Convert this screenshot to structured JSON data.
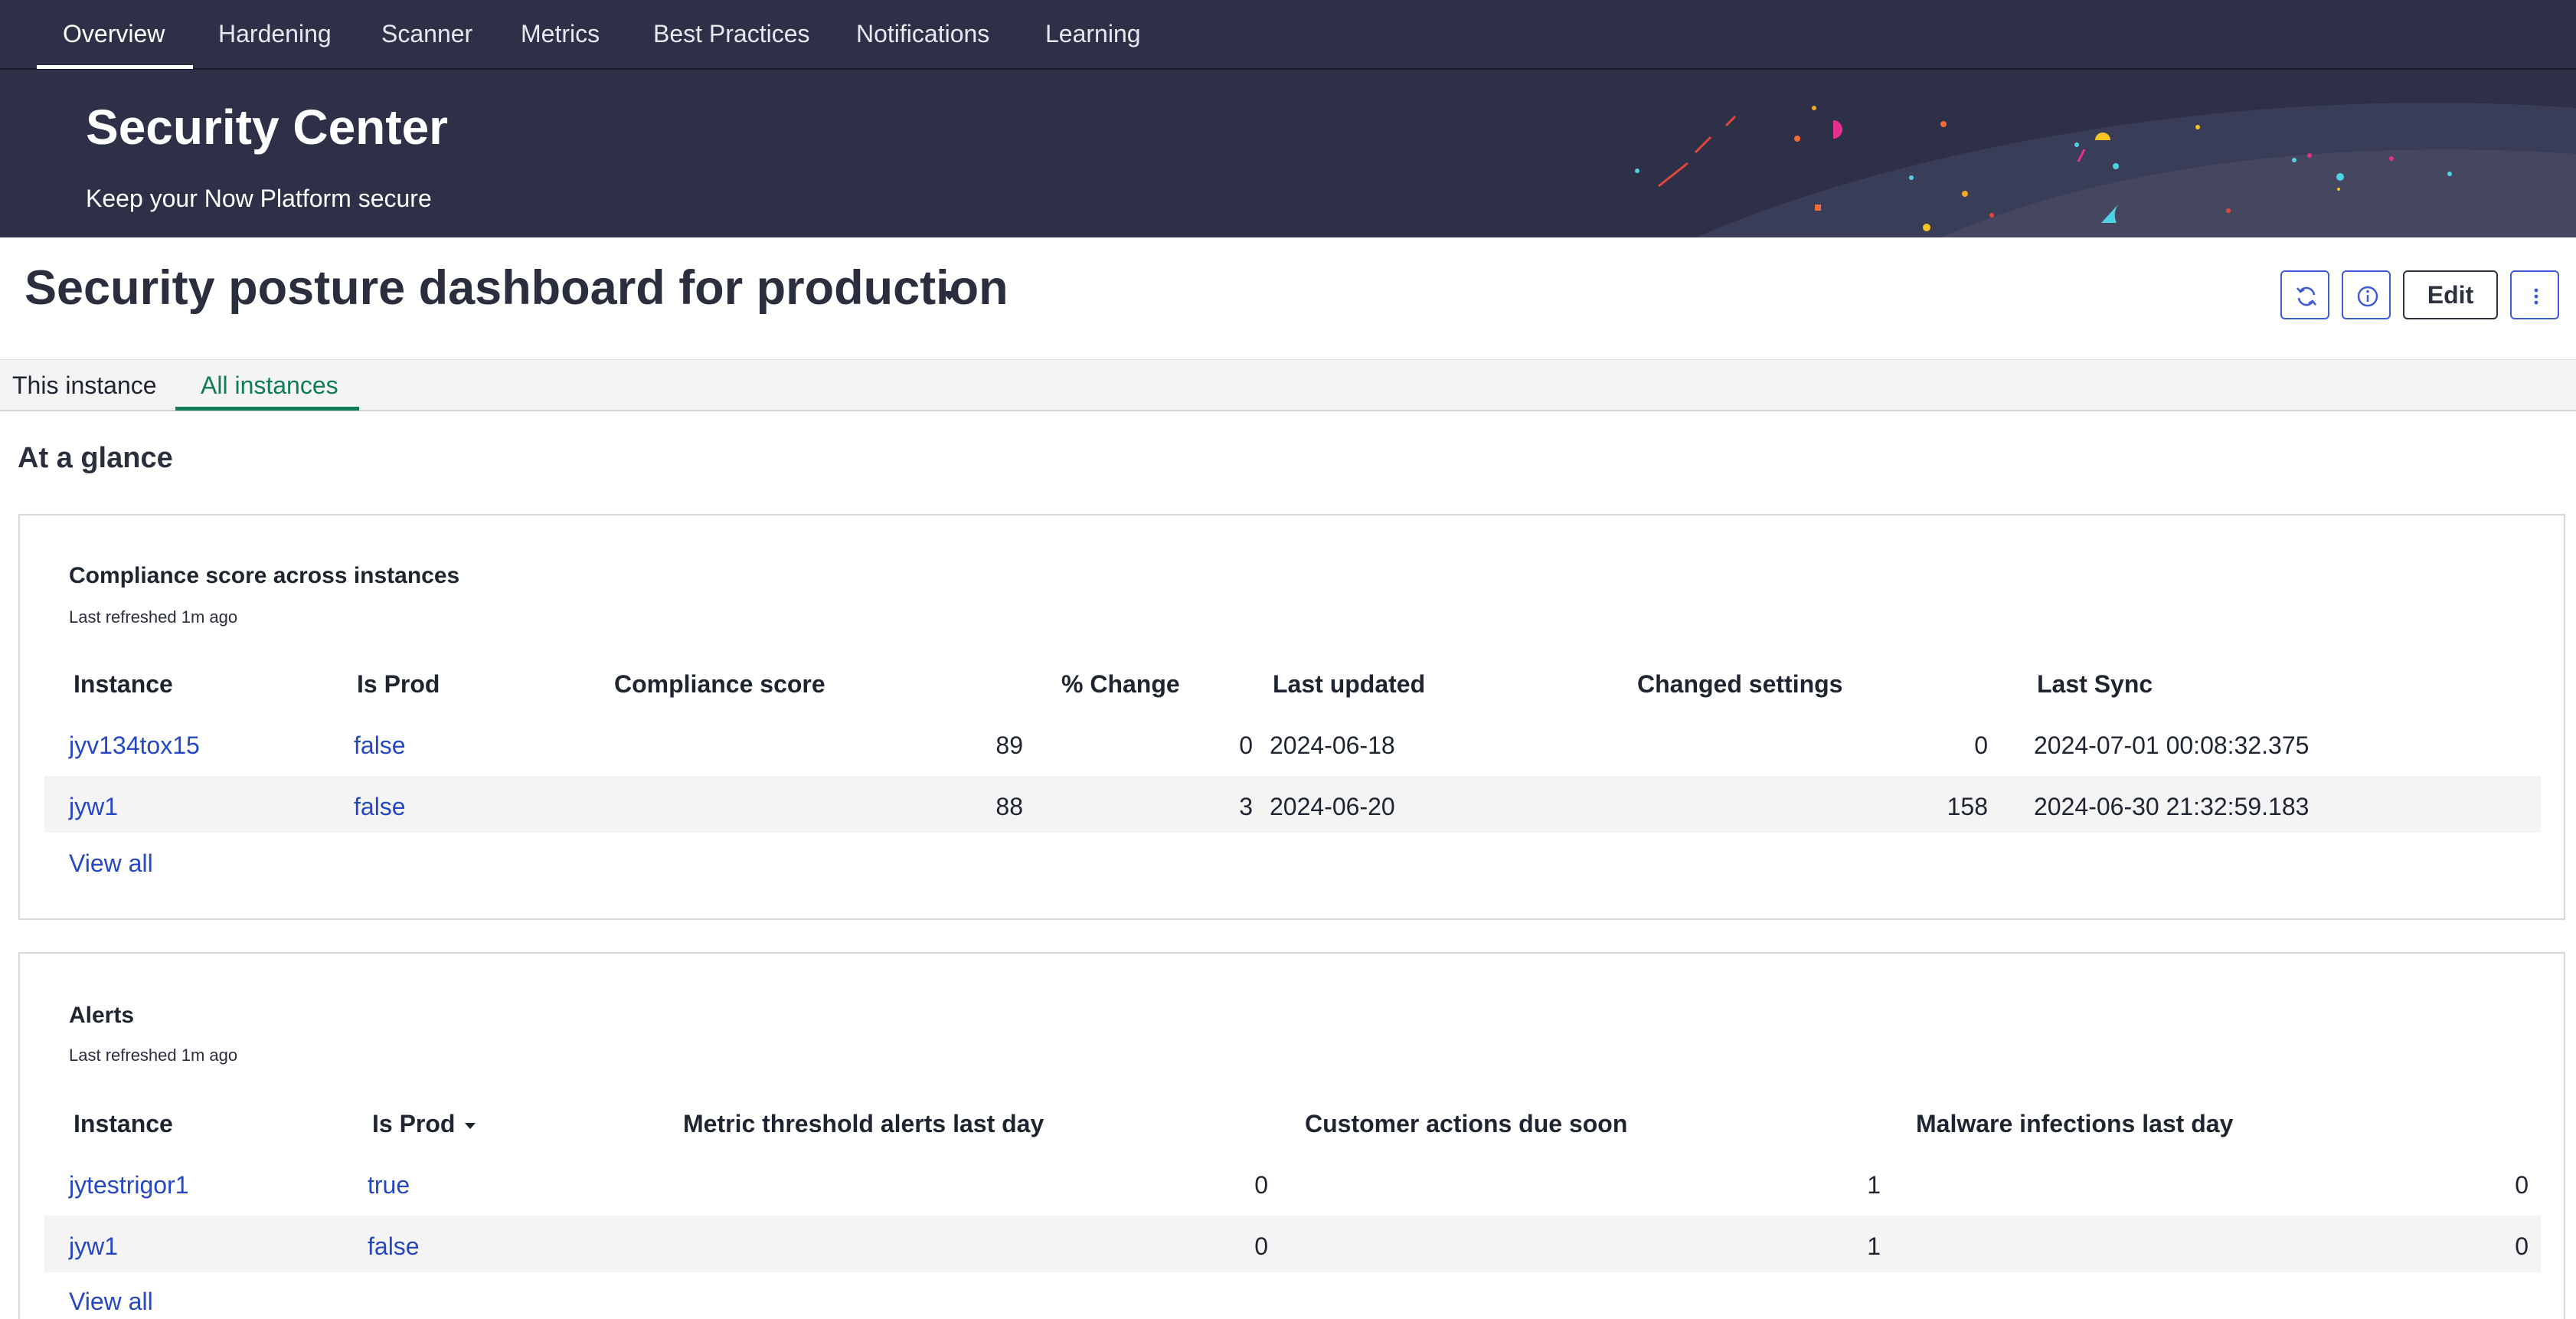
{
  "top_nav": {
    "tabs": [
      {
        "label": "Overview",
        "active": true
      },
      {
        "label": "Hardening",
        "active": false
      },
      {
        "label": "Scanner",
        "active": false
      },
      {
        "label": "Metrics",
        "active": false
      },
      {
        "label": "Best Practices",
        "active": false
      },
      {
        "label": "Notifications",
        "active": false
      },
      {
        "label": "Learning",
        "active": false
      }
    ]
  },
  "hero": {
    "title": "Security Center",
    "subtitle": "Keep your Now Platform secure"
  },
  "dashboard": {
    "title": "Security posture dashboard for production",
    "actions": {
      "refresh_icon": "refresh-icon",
      "info_icon": "info-icon",
      "edit_label": "Edit",
      "more_icon": "more-vertical-icon"
    }
  },
  "instance_tabs": [
    {
      "label": "This instance",
      "active": false
    },
    {
      "label": "All instances",
      "active": true
    }
  ],
  "section_title": "At a glance",
  "compliance_card": {
    "title": "Compliance score across instances",
    "refreshed": "Last refreshed 1m ago",
    "columns": [
      "Instance",
      "Is Prod",
      "Compliance score",
      "% Change",
      "Last updated",
      "Changed settings",
      "Last Sync"
    ],
    "rows": [
      {
        "instance": "jyv134tox15",
        "is_prod": "false",
        "score": "89",
        "change": "0",
        "last_updated": "2024-06-18",
        "changed_settings": "0",
        "last_sync": "2024-07-01 00:08:32.375"
      },
      {
        "instance": "jyw1",
        "is_prod": "false",
        "score": "88",
        "change": "3",
        "last_updated": "2024-06-20",
        "changed_settings": "158",
        "last_sync": "2024-06-30 21:32:59.183"
      }
    ],
    "view_all": "View all"
  },
  "alerts_card": {
    "title": "Alerts",
    "refreshed": "Last refreshed 1m ago",
    "columns": [
      "Instance",
      "Is Prod",
      "Metric threshold alerts last day",
      "Customer actions due soon",
      "Malware infections last day"
    ],
    "rows": [
      {
        "instance": "jytestrigor1",
        "is_prod": "true",
        "metric_alerts": "0",
        "customer_actions": "1",
        "malware": "0"
      },
      {
        "instance": "jyw1",
        "is_prod": "false",
        "metric_alerts": "0",
        "customer_actions": "1",
        "malware": "0"
      }
    ],
    "view_all": "View all"
  },
  "colors": {
    "nav_bg": "#2e3047",
    "link": "#2647c5",
    "accent_green": "#0f7b58",
    "button_border": "#3e5bd8"
  }
}
